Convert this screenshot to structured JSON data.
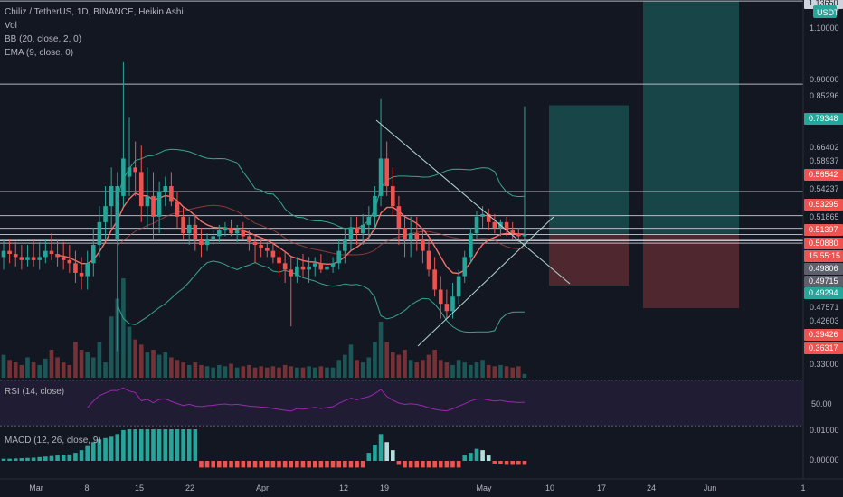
{
  "legend": {
    "title": "Chiliz / TetherUS, 1D, BINANCE, Heikin Ashi",
    "items": [
      "Vol",
      "BB (20, close, 2, 0)",
      "EMA (9, close, 0)"
    ]
  },
  "rsi_label": "RSI (14, close)",
  "macd_label": "MACD (12, 26, close, 9)",
  "currency_badge": "USDT",
  "colors": {
    "background": "#131722",
    "up": "#26a69a",
    "down": "#ef5350",
    "bb": "#3aa48f",
    "ema": "#f4716b",
    "rsi": "#9c27b0",
    "price_tag": "#ef5350",
    "profit_zone": "#1a4d4f",
    "loss_zone": "#5a2a30"
  },
  "price_axis": {
    "plain_labels": [
      "1.10000",
      "0.90000",
      "0.85296",
      "0.66402",
      "0.58937",
      "0.54237",
      "0.51865",
      "0.47571",
      "0.42603",
      "0.33000"
    ],
    "tags": [
      {
        "text": "1.13650",
        "style": "white"
      },
      {
        "text": "0.79348",
        "style": "green"
      },
      {
        "text": "0.56542",
        "style": "red"
      },
      {
        "text": "0.53295",
        "style": "red"
      },
      {
        "text": "0.51397",
        "style": "red"
      },
      {
        "text": "0.50880",
        "style": "red"
      },
      {
        "text": "15:55:15",
        "style": "red"
      },
      {
        "text": "0.49806",
        "style": "grey"
      },
      {
        "text": "0.49715",
        "style": "grey"
      },
      {
        "text": "0.49294",
        "style": "green"
      },
      {
        "text": "0.39426",
        "style": "red"
      },
      {
        "text": "0.36317",
        "style": "red"
      }
    ]
  },
  "rsi_axis": {
    "labels": [
      "50.00"
    ]
  },
  "macd_axis": {
    "labels": [
      "0.01000",
      "0.00000"
    ]
  },
  "time_axis": {
    "labels": [
      "Mar",
      "8",
      "15",
      "22",
      "Apr",
      "12",
      "19",
      "May",
      "10",
      "17",
      "24",
      "Jun",
      "1"
    ]
  },
  "chart_data": {
    "type": "candlestick",
    "symbol": "Chiliz / TetherUS",
    "interval": "1D",
    "exchange": "BINANCE",
    "candle_style": "Heikin Ashi",
    "y_scale": "log",
    "ylim": [
      0.31,
      1.14
    ],
    "start": "2021-02-26",
    "candles": [
      {
        "o": 0.47,
        "h": 0.5,
        "l": 0.45,
        "c": 0.48
      },
      {
        "o": 0.48,
        "h": 0.5,
        "l": 0.46,
        "c": 0.475
      },
      {
        "o": 0.475,
        "h": 0.495,
        "l": 0.455,
        "c": 0.47
      },
      {
        "o": 0.47,
        "h": 0.49,
        "l": 0.45,
        "c": 0.465
      },
      {
        "o": 0.465,
        "h": 0.49,
        "l": 0.455,
        "c": 0.47
      },
      {
        "o": 0.47,
        "h": 0.5,
        "l": 0.455,
        "c": 0.465
      },
      {
        "o": 0.465,
        "h": 0.495,
        "l": 0.45,
        "c": 0.47
      },
      {
        "o": 0.47,
        "h": 0.5,
        "l": 0.46,
        "c": 0.48
      },
      {
        "o": 0.48,
        "h": 0.51,
        "l": 0.465,
        "c": 0.475
      },
      {
        "o": 0.475,
        "h": 0.5,
        "l": 0.455,
        "c": 0.47
      },
      {
        "o": 0.47,
        "h": 0.495,
        "l": 0.45,
        "c": 0.465
      },
      {
        "o": 0.465,
        "h": 0.49,
        "l": 0.445,
        "c": 0.46
      },
      {
        "o": 0.46,
        "h": 0.48,
        "l": 0.43,
        "c": 0.445
      },
      {
        "o": 0.445,
        "h": 0.47,
        "l": 0.42,
        "c": 0.44
      },
      {
        "o": 0.44,
        "h": 0.48,
        "l": 0.42,
        "c": 0.46
      },
      {
        "o": 0.46,
        "h": 0.52,
        "l": 0.44,
        "c": 0.49
      },
      {
        "o": 0.49,
        "h": 0.56,
        "l": 0.47,
        "c": 0.53
      },
      {
        "o": 0.53,
        "h": 0.6,
        "l": 0.5,
        "c": 0.56
      },
      {
        "o": 0.56,
        "h": 0.64,
        "l": 0.52,
        "c": 0.6
      },
      {
        "o": 0.5,
        "h": 0.63,
        "l": 0.34,
        "c": 0.6
      },
      {
        "o": 0.58,
        "h": 0.92,
        "l": 0.56,
        "c": 0.66
      },
      {
        "o": 0.62,
        "h": 0.76,
        "l": 0.58,
        "c": 0.64
      },
      {
        "o": 0.64,
        "h": 0.7,
        "l": 0.58,
        "c": 0.63
      },
      {
        "o": 0.63,
        "h": 0.69,
        "l": 0.53,
        "c": 0.56
      },
      {
        "o": 0.56,
        "h": 0.64,
        "l": 0.52,
        "c": 0.58
      },
      {
        "o": 0.58,
        "h": 0.63,
        "l": 0.5,
        "c": 0.54
      },
      {
        "o": 0.54,
        "h": 0.61,
        "l": 0.51,
        "c": 0.59
      },
      {
        "o": 0.59,
        "h": 0.62,
        "l": 0.56,
        "c": 0.6
      },
      {
        "o": 0.6,
        "h": 0.63,
        "l": 0.56,
        "c": 0.57
      },
      {
        "o": 0.57,
        "h": 0.59,
        "l": 0.52,
        "c": 0.54
      },
      {
        "o": 0.54,
        "h": 0.56,
        "l": 0.5,
        "c": 0.51
      },
      {
        "o": 0.51,
        "h": 0.54,
        "l": 0.49,
        "c": 0.525
      },
      {
        "o": 0.525,
        "h": 0.545,
        "l": 0.48,
        "c": 0.5
      },
      {
        "o": 0.5,
        "h": 0.52,
        "l": 0.47,
        "c": 0.49
      },
      {
        "o": 0.49,
        "h": 0.51,
        "l": 0.48,
        "c": 0.5
      },
      {
        "o": 0.5,
        "h": 0.515,
        "l": 0.49,
        "c": 0.505
      },
      {
        "o": 0.505,
        "h": 0.525,
        "l": 0.495,
        "c": 0.515
      },
      {
        "o": 0.515,
        "h": 0.53,
        "l": 0.505,
        "c": 0.52
      },
      {
        "o": 0.52,
        "h": 0.535,
        "l": 0.505,
        "c": 0.51
      },
      {
        "o": 0.51,
        "h": 0.525,
        "l": 0.495,
        "c": 0.515
      },
      {
        "o": 0.515,
        "h": 0.53,
        "l": 0.5,
        "c": 0.505
      },
      {
        "o": 0.505,
        "h": 0.515,
        "l": 0.48,
        "c": 0.495
      },
      {
        "o": 0.495,
        "h": 0.505,
        "l": 0.46,
        "c": 0.49
      },
      {
        "o": 0.49,
        "h": 0.5,
        "l": 0.47,
        "c": 0.485
      },
      {
        "o": 0.485,
        "h": 0.495,
        "l": 0.47,
        "c": 0.48
      },
      {
        "o": 0.48,
        "h": 0.495,
        "l": 0.46,
        "c": 0.47
      },
      {
        "o": 0.47,
        "h": 0.48,
        "l": 0.44,
        "c": 0.46
      },
      {
        "o": 0.46,
        "h": 0.48,
        "l": 0.43,
        "c": 0.45
      },
      {
        "o": 0.45,
        "h": 0.47,
        "l": 0.37,
        "c": 0.44
      },
      {
        "o": 0.44,
        "h": 0.47,
        "l": 0.43,
        "c": 0.455
      },
      {
        "o": 0.455,
        "h": 0.475,
        "l": 0.44,
        "c": 0.45
      },
      {
        "o": 0.45,
        "h": 0.47,
        "l": 0.43,
        "c": 0.455
      },
      {
        "o": 0.455,
        "h": 0.47,
        "l": 0.44,
        "c": 0.46
      },
      {
        "o": 0.46,
        "h": 0.475,
        "l": 0.445,
        "c": 0.45
      },
      {
        "o": 0.45,
        "h": 0.465,
        "l": 0.44,
        "c": 0.455
      },
      {
        "o": 0.455,
        "h": 0.47,
        "l": 0.445,
        "c": 0.46
      },
      {
        "o": 0.46,
        "h": 0.5,
        "l": 0.45,
        "c": 0.48
      },
      {
        "o": 0.48,
        "h": 0.52,
        "l": 0.46,
        "c": 0.5
      },
      {
        "o": 0.5,
        "h": 0.54,
        "l": 0.48,
        "c": 0.52
      },
      {
        "o": 0.52,
        "h": 0.54,
        "l": 0.49,
        "c": 0.51
      },
      {
        "o": 0.51,
        "h": 0.545,
        "l": 0.49,
        "c": 0.525
      },
      {
        "o": 0.525,
        "h": 0.56,
        "l": 0.5,
        "c": 0.54
      },
      {
        "o": 0.54,
        "h": 0.6,
        "l": 0.52,
        "c": 0.58
      },
      {
        "o": 0.58,
        "h": 0.81,
        "l": 0.56,
        "c": 0.66
      },
      {
        "o": 0.66,
        "h": 0.7,
        "l": 0.58,
        "c": 0.6
      },
      {
        "o": 0.6,
        "h": 0.64,
        "l": 0.54,
        "c": 0.56
      },
      {
        "o": 0.56,
        "h": 0.58,
        "l": 0.49,
        "c": 0.52
      },
      {
        "o": 0.52,
        "h": 0.54,
        "l": 0.47,
        "c": 0.5
      },
      {
        "o": 0.5,
        "h": 0.54,
        "l": 0.47,
        "c": 0.51
      },
      {
        "o": 0.51,
        "h": 0.54,
        "l": 0.48,
        "c": 0.5
      },
      {
        "o": 0.5,
        "h": 0.52,
        "l": 0.46,
        "c": 0.48
      },
      {
        "o": 0.48,
        "h": 0.5,
        "l": 0.44,
        "c": 0.45
      },
      {
        "o": 0.45,
        "h": 0.47,
        "l": 0.41,
        "c": 0.42
      },
      {
        "o": 0.42,
        "h": 0.44,
        "l": 0.38,
        "c": 0.4
      },
      {
        "o": 0.4,
        "h": 0.42,
        "l": 0.38,
        "c": 0.39
      },
      {
        "o": 0.39,
        "h": 0.43,
        "l": 0.38,
        "c": 0.41
      },
      {
        "o": 0.41,
        "h": 0.45,
        "l": 0.4,
        "c": 0.44
      },
      {
        "o": 0.44,
        "h": 0.48,
        "l": 0.43,
        "c": 0.47
      },
      {
        "o": 0.47,
        "h": 0.52,
        "l": 0.46,
        "c": 0.51
      },
      {
        "o": 0.51,
        "h": 0.55,
        "l": 0.5,
        "c": 0.54
      },
      {
        "o": 0.54,
        "h": 0.56,
        "l": 0.52,
        "c": 0.545
      },
      {
        "o": 0.545,
        "h": 0.555,
        "l": 0.515,
        "c": 0.53
      },
      {
        "o": 0.53,
        "h": 0.545,
        "l": 0.51,
        "c": 0.52
      },
      {
        "o": 0.52,
        "h": 0.535,
        "l": 0.505,
        "c": 0.53
      },
      {
        "o": 0.53,
        "h": 0.54,
        "l": 0.505,
        "c": 0.515
      },
      {
        "o": 0.515,
        "h": 0.53,
        "l": 0.5,
        "c": 0.51
      },
      {
        "o": 0.51,
        "h": 0.52,
        "l": 0.495,
        "c": 0.505
      },
      {
        "o": 0.505,
        "h": 0.79,
        "l": 0.495,
        "c": 0.508
      }
    ],
    "volume": [
      18,
      14,
      12,
      10,
      16,
      12,
      10,
      15,
      22,
      16,
      12,
      10,
      28,
      22,
      20,
      16,
      28,
      12,
      48,
      62,
      78,
      40,
      30,
      26,
      20,
      22,
      18,
      20,
      16,
      14,
      12,
      10,
      12,
      10,
      9,
      8,
      10,
      9,
      11,
      8,
      9,
      10,
      8,
      9,
      8,
      9,
      8,
      10,
      9,
      8,
      8,
      9,
      8,
      9,
      8,
      8,
      14,
      18,
      26,
      14,
      12,
      16,
      28,
      44,
      28,
      20,
      18,
      22,
      14,
      12,
      14,
      18,
      22,
      14,
      12,
      10,
      14,
      12,
      10,
      12,
      14,
      10,
      9,
      10,
      9,
      8,
      9,
      3
    ],
    "macd_hist": [
      0.0008,
      0.0008,
      0.0009,
      0.001,
      0.0011,
      0.0012,
      0.0014,
      0.0016,
      0.0018,
      0.002,
      0.0022,
      0.0024,
      0.003,
      0.004,
      0.0055,
      0.007,
      0.008,
      0.0085,
      0.009,
      0.01,
      0.0115,
      0.0118,
      0.0118,
      0.0118,
      0.0118,
      0.0118,
      0.0118,
      0.0118,
      0.0118,
      0.0118,
      0.0118,
      0.0118,
      0.0118,
      -0.0025,
      -0.0025,
      -0.0025,
      -0.0025,
      -0.0025,
      -0.0025,
      -0.0025,
      -0.0025,
      -0.0025,
      -0.0025,
      -0.0025,
      -0.0025,
      -0.0025,
      -0.0025,
      -0.0025,
      -0.0025,
      -0.0025,
      -0.0025,
      -0.0025,
      -0.0025,
      -0.0025,
      -0.0025,
      -0.0025,
      -0.0025,
      -0.0025,
      -0.0025,
      -0.0025,
      -0.0025,
      0.003,
      0.006,
      0.01,
      0.007,
      0.004,
      -0.0015,
      -0.0025,
      -0.0025,
      -0.0025,
      -0.0025,
      -0.0025,
      -0.0025,
      -0.0025,
      -0.0025,
      -0.0025,
      -0.0025,
      0.002,
      0.003,
      0.0045,
      0.004,
      0.002,
      -0.001,
      -0.0012,
      -0.0015,
      -0.0015,
      -0.0015,
      -0.0015
    ]
  }
}
